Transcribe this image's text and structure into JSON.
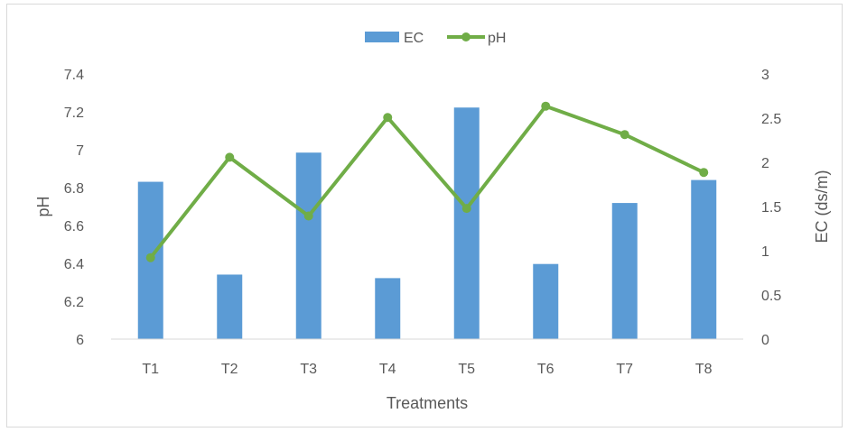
{
  "chart_data": {
    "type": "bar",
    "categories": [
      "T1",
      "T2",
      "T3",
      "T4",
      "T5",
      "T6",
      "T7",
      "T8"
    ],
    "series": [
      {
        "name": "EC",
        "type": "bar",
        "axis": "right",
        "color": "#5b9bd5",
        "values": [
          1.78,
          0.73,
          2.11,
          0.69,
          2.62,
          0.85,
          1.54,
          1.8
        ]
      },
      {
        "name": "pH",
        "type": "line",
        "axis": "left",
        "color": "#70ad47",
        "values": [
          6.43,
          6.96,
          6.65,
          7.17,
          6.69,
          7.23,
          7.08,
          6.88
        ]
      }
    ],
    "xlabel": "Treatments",
    "ylabel_left": "pH",
    "ylabel_right": "EC (ds/m)",
    "ylim_left": [
      6,
      7.4
    ],
    "ylim_right": [
      0,
      3
    ],
    "yticks_left": [
      "6",
      "6.2",
      "6.4",
      "6.6",
      "6.8",
      "7",
      "7.2",
      "7.4"
    ],
    "yticks_right": [
      "0",
      "0.5",
      "1",
      "1.5",
      "2",
      "2.5",
      "3"
    ],
    "grid": false,
    "legend_position": "top-center",
    "axis_line_color": "#d9d9d9",
    "text_color": "#595959"
  }
}
